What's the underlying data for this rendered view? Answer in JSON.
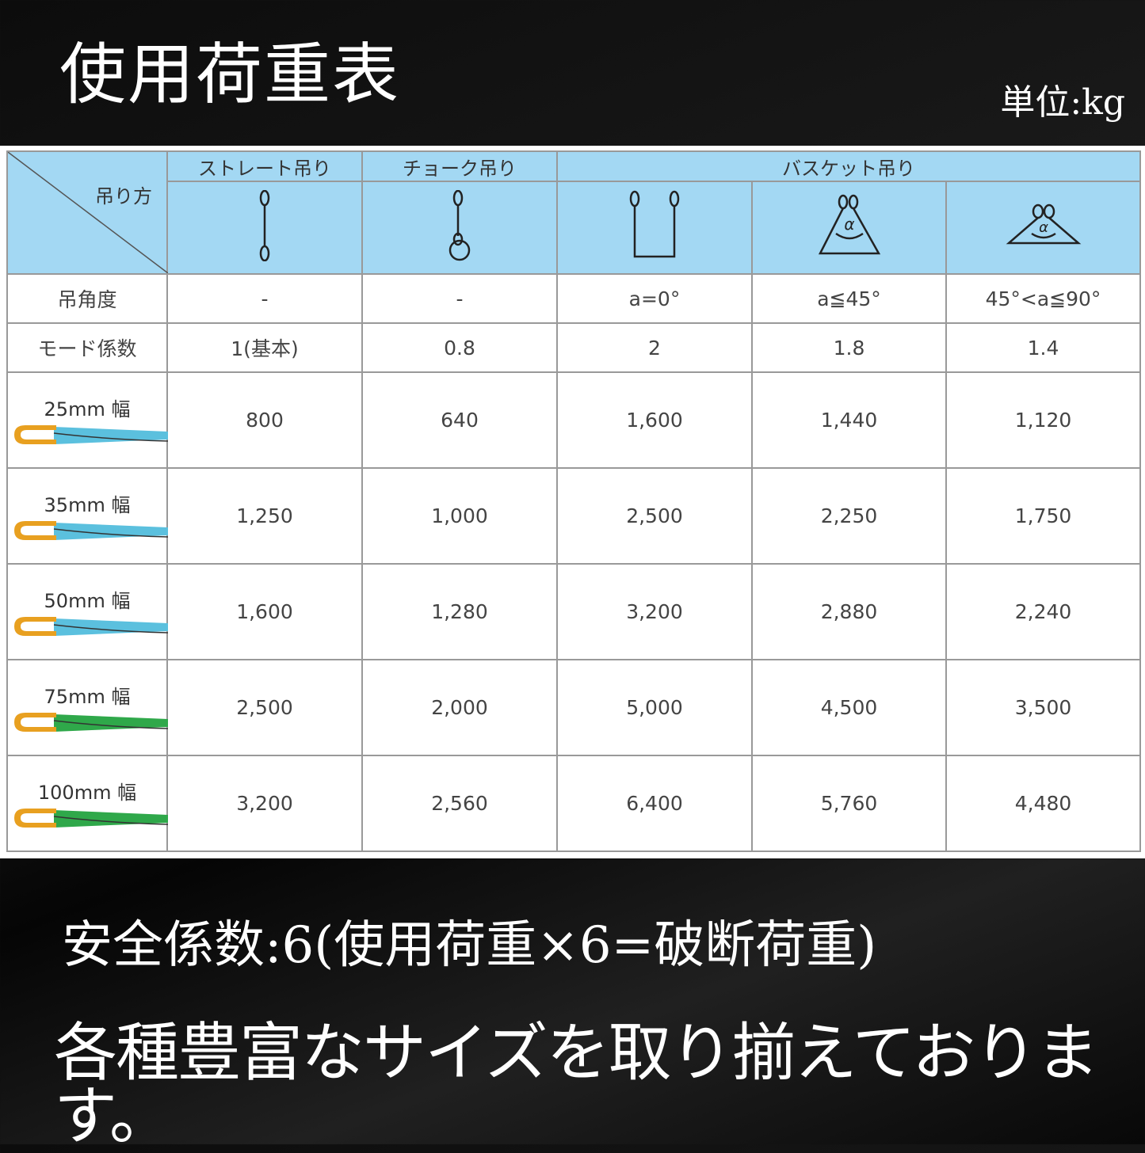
{
  "title": "使用荷重表",
  "unit": "単位:kg",
  "table": {
    "corner_label": "吊り方",
    "groups": [
      "ストレート吊り",
      "チョーク吊り",
      "バスケット吊り"
    ],
    "icons": [
      "straight-hitch-icon",
      "choke-hitch-icon",
      "basket-vertical-icon",
      "basket-45-icon",
      "basket-90-icon"
    ],
    "angle_row": {
      "label": "吊角度",
      "values": [
        "-",
        "-",
        "a=0°",
        "a≦45°",
        "45°<a≦90°"
      ]
    },
    "factor_row": {
      "label": "モード係数",
      "values": [
        "1(基本)",
        "0.8",
        "2",
        "1.8",
        "1.4"
      ]
    },
    "rows": [
      {
        "width": "25mm 幅",
        "color": "#5bc0de",
        "values": [
          "800",
          "640",
          "1,600",
          "1,440",
          "1,120"
        ]
      },
      {
        "width": "35mm 幅",
        "color": "#5bc0de",
        "values": [
          "1,250",
          "1,000",
          "2,500",
          "2,250",
          "1,750"
        ]
      },
      {
        "width": "50mm 幅",
        "color": "#5bc0de",
        "values": [
          "1,600",
          "1,280",
          "3,200",
          "2,880",
          "2,240"
        ]
      },
      {
        "width": "75mm 幅",
        "color": "#2fa84a",
        "values": [
          "2,500",
          "2,000",
          "5,000",
          "4,500",
          "3,500"
        ]
      },
      {
        "width": "100mm 幅",
        "color": "#2fa84a",
        "values": [
          "3,200",
          "2,560",
          "6,400",
          "5,760",
          "4,480"
        ]
      }
    ],
    "header_color": "#a3d8f3",
    "eye_color": "#e8a020"
  },
  "footer": {
    "safety": "安全係数:6(使用荷重×6=破断荷重)",
    "tagline": "各種豊富なサイズを取り揃えております。"
  }
}
